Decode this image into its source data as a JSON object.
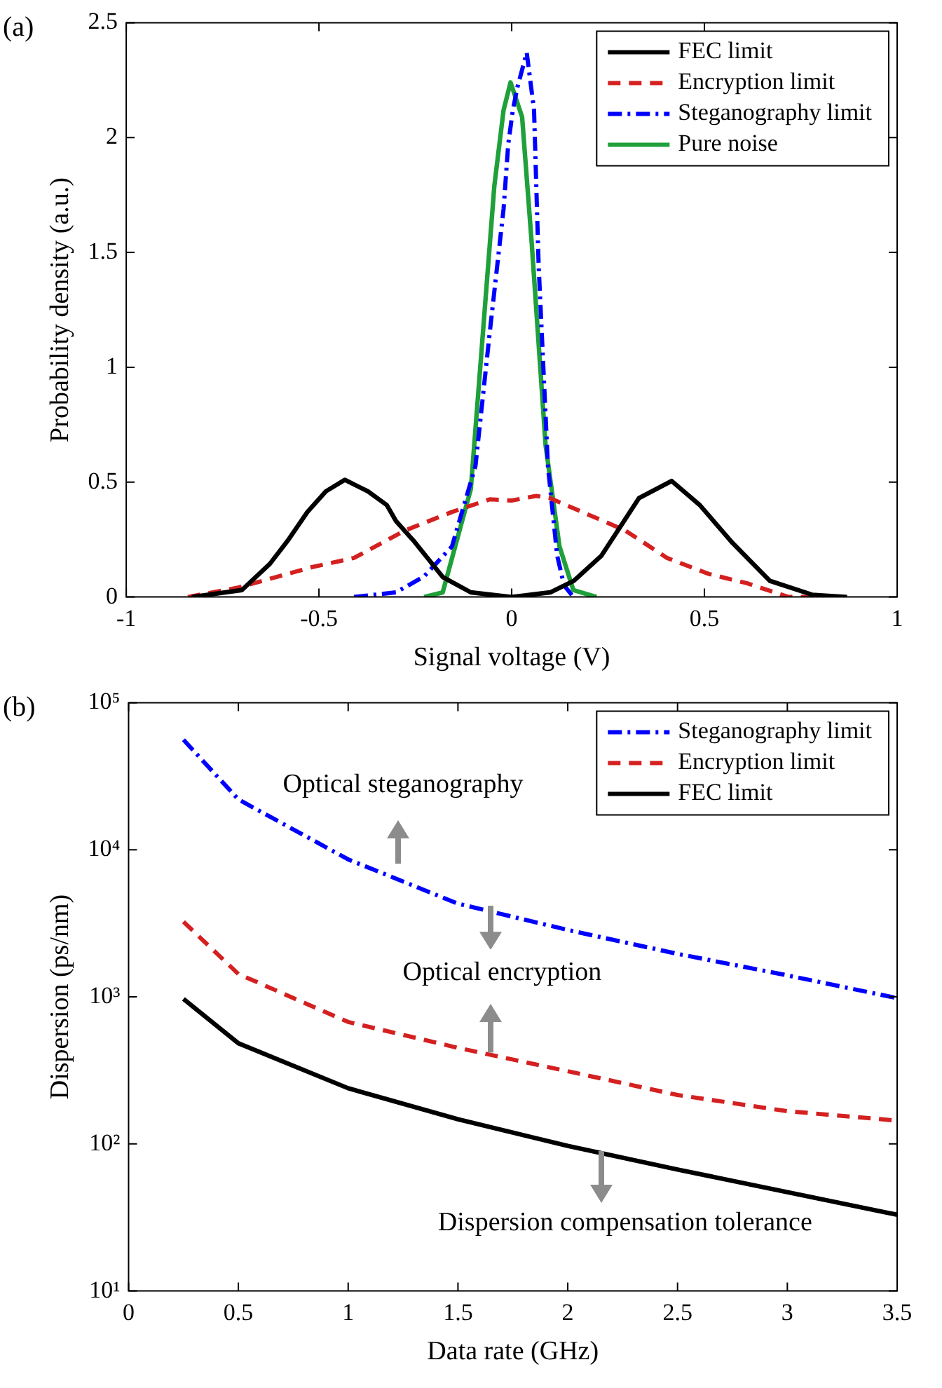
{
  "chart_data": [
    {
      "type": "line",
      "xlabel": "Signal voltage (V)",
      "ylabel": "Probability density (a.u.)",
      "annotations": [
        "(a)"
      ],
      "xlim": [
        -1,
        1
      ],
      "xticks": [
        -1,
        -0.5,
        0,
        0.5,
        1
      ],
      "ylim": [
        0,
        2.5
      ],
      "yticks": [
        0,
        0.5,
        1,
        1.5,
        2,
        2.5
      ],
      "grid": false,
      "legend": "top right",
      "marker": "none",
      "series": [
        {
          "name": "FEC limit",
          "color": "#000000",
          "line_style": "solid",
          "x": [
            -0.83,
            -0.7,
            -0.627,
            -0.579,
            -0.53,
            -0.482,
            -0.433,
            -0.373,
            -0.324,
            -0.3,
            -0.252,
            -0.179,
            -0.106,
            0,
            0.1,
            0.161,
            0.233,
            0.33,
            0.415,
            0.488,
            0.573,
            0.67,
            0.779,
            0.87
          ],
          "values": [
            0,
            0.03,
            0.145,
            0.25,
            0.37,
            0.46,
            0.51,
            0.46,
            0.4,
            0.33,
            0.24,
            0.087,
            0.02,
            0,
            0.02,
            0.07,
            0.18,
            0.43,
            0.505,
            0.4,
            0.235,
            0.07,
            0.01,
            0
          ]
        },
        {
          "name": "Encryption limit",
          "color": "#d42020",
          "line_style": "dashed",
          "x": [
            -0.84,
            -0.712,
            -0.518,
            -0.409,
            -0.276,
            -0.155,
            -0.057,
            0,
            0.064,
            0.1,
            0.197,
            0.294,
            0.403,
            0.512,
            0.61,
            0.718,
            0.815
          ],
          "values": [
            0,
            0.04,
            0.13,
            0.17,
            0.29,
            0.37,
            0.425,
            0.42,
            0.44,
            0.43,
            0.36,
            0.29,
            0.17,
            0.1,
            0.06,
            0,
            0
          ]
        },
        {
          "name": "Steganography limit",
          "color": "#0000ff",
          "line_style": "dashdot",
          "x": [
            -0.409,
            -0.3,
            -0.227,
            -0.155,
            -0.094,
            -0.057,
            -0.021,
            -0.009,
            0.003,
            0.015,
            0.039,
            0.058,
            0.07,
            0.094,
            0.118,
            0.136,
            0.16
          ],
          "values": [
            0,
            0.02,
            0.09,
            0.22,
            0.57,
            1.15,
            1.69,
            1.97,
            2.12,
            2.22,
            2.37,
            2.12,
            1.44,
            0.57,
            0.18,
            0.05,
            0
          ]
        },
        {
          "name": "Pure noise",
          "color": "#1fa03a",
          "line_style": "solid",
          "x": [
            -0.227,
            -0.179,
            -0.106,
            -0.07,
            -0.045,
            -0.021,
            -0.003,
            0.027,
            0.052,
            0.088,
            0.124,
            0.16,
            0.22
          ],
          "values": [
            0,
            0.02,
            0.47,
            1.25,
            1.79,
            2.12,
            2.24,
            2.09,
            1.54,
            0.66,
            0.22,
            0.03,
            0
          ]
        }
      ]
    },
    {
      "type": "line",
      "xlabel": "Data rate (GHz)",
      "ylabel": "Dispersion (ps/nm)",
      "annotations": [
        "(b)",
        "Optical steganography",
        "Optical encryption",
        "Dispersion compensation tolerance"
      ],
      "log": "y",
      "xlim": [
        0,
        3.5
      ],
      "xticks": [
        0,
        0.5,
        1,
        1.5,
        2,
        2.5,
        3,
        3.5
      ],
      "ylim": [
        10,
        100000
      ],
      "yticks": [
        {
          "value": 10,
          "label": "10¹"
        },
        {
          "value": 100,
          "label": "10²"
        },
        {
          "value": 1000,
          "label": "10³"
        },
        {
          "value": 10000,
          "label": "10⁴"
        },
        {
          "value": 100000,
          "label": "10⁵"
        }
      ],
      "grid": false,
      "legend": "top right",
      "marker": "none",
      "x": [
        0.25,
        0.5,
        1,
        1.5,
        2,
        2.5,
        3,
        3.5
      ],
      "series": [
        {
          "name": "Steganography limit",
          "color": "#0000ff",
          "line_style": "dashdot",
          "values": [
            56000,
            22000,
            8600,
            4300,
            2850,
            1960,
            1400,
            980
          ]
        },
        {
          "name": "Encryption limit",
          "color": "#d42020",
          "line_style": "dashed",
          "values": [
            3240,
            1430,
            675,
            450,
            312,
            215,
            167,
            144
          ]
        },
        {
          "name": "FEC limit",
          "color": "#000000",
          "line_style": "solid",
          "values": [
            967,
            483,
            239,
            147,
            97,
            67,
            47,
            33
          ]
        }
      ]
    }
  ]
}
